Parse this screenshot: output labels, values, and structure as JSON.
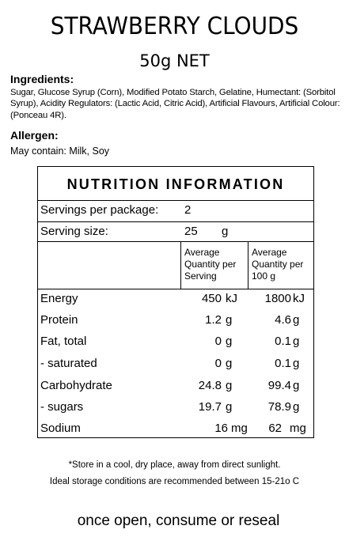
{
  "product": {
    "title": "STRAWBERRY CLOUDS",
    "net": "50g NET"
  },
  "ingredients": {
    "heading": "Ingredients:",
    "text": "Sugar, Glucose Syrup (Corn), Modified Potato Starch, Gelatine, Humectant: (Sorbitol Syrup), Acidity Regulators: (Lactic Acid, Citric Acid), Artificial Flavours, Artificial Colour: (Ponceau 4R)."
  },
  "allergen": {
    "heading": "Allergen:",
    "text": "May contain: Milk, Soy"
  },
  "nutrition": {
    "heading": "NUTRITION INFORMATION",
    "servings_label": "Servings per package:",
    "servings_value": "2",
    "serving_size_label": "Serving size:",
    "serving_size_value": "25",
    "serving_size_unit": "g",
    "col_serving": "Average\nQuantity per\nServing",
    "col_100g": "Average\nQuantity per\n100 g",
    "rows": [
      {
        "name": "Energy",
        "serving": "450",
        "serving_unit": "kJ",
        "per100": "1800",
        "per100_unit": "kJ"
      },
      {
        "name": "Protein",
        "serving": "1.2",
        "serving_unit": "g",
        "per100": "4.6",
        "per100_unit": "g"
      },
      {
        "name": "Fat, total",
        "serving": "0",
        "serving_unit": "g",
        "per100": "0.1",
        "per100_unit": "g"
      },
      {
        "name": "- saturated",
        "serving": "0",
        "serving_unit": "g",
        "per100": "0.1",
        "per100_unit": "g"
      },
      {
        "name": "Carbohydrate",
        "serving": "24.8",
        "serving_unit": "g",
        "per100": "99.4",
        "per100_unit": "g"
      },
      {
        "name": "- sugars",
        "serving": "19.7",
        "serving_unit": "g",
        "per100": "78.9",
        "per100_unit": "g"
      },
      {
        "name": "Sodium",
        "serving": "16",
        "serving_unit": "mg",
        "per100": "62",
        "per100_unit": "mg"
      }
    ]
  },
  "footer": {
    "storage": "*Store in a cool, dry place, away from direct sunlight.",
    "conditions": "Ideal storage conditions are recommended between 15-21o C",
    "reseal": "once open, consume or reseal"
  }
}
